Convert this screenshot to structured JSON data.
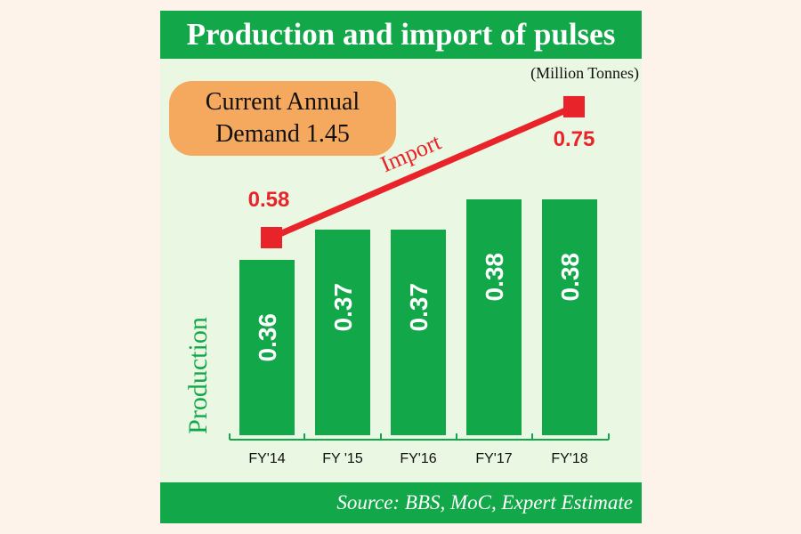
{
  "header": {
    "title": "Production and import of pulses"
  },
  "demand_note": {
    "line1": "Current Annual",
    "line2": "Demand 1.45"
  },
  "units_label": "(Million Tonnes)",
  "footer": {
    "source": "Source: BBS, MoC, Expert Estimate"
  },
  "colors": {
    "production": "#12a84a",
    "import": "#e8232a",
    "demand_box": "#f4a95e",
    "plot_background": "#eaf7e2",
    "page_background": "#fdf3ea"
  },
  "chart_data": {
    "type": "bar",
    "title": "Production and import of pulses",
    "units": "(Million Tonnes)",
    "categories": [
      "FY'14",
      "FY '15",
      "FY'16",
      "FY'17",
      "FY'18"
    ],
    "series": [
      {
        "name": "Production",
        "type": "bar",
        "values": [
          0.36,
          0.37,
          0.37,
          0.38,
          0.38
        ],
        "labels": [
          "0.36",
          "0.37",
          "0.37",
          "0.38",
          "0.38"
        ]
      },
      {
        "name": "Import",
        "type": "line",
        "points": [
          {
            "category": "FY'14",
            "value": 0.58,
            "label": "0.58"
          },
          {
            "category": "FY'18",
            "value": 0.75,
            "label": "0.75"
          }
        ]
      }
    ],
    "ylabel": "Production",
    "grid": false,
    "legend": "none"
  }
}
